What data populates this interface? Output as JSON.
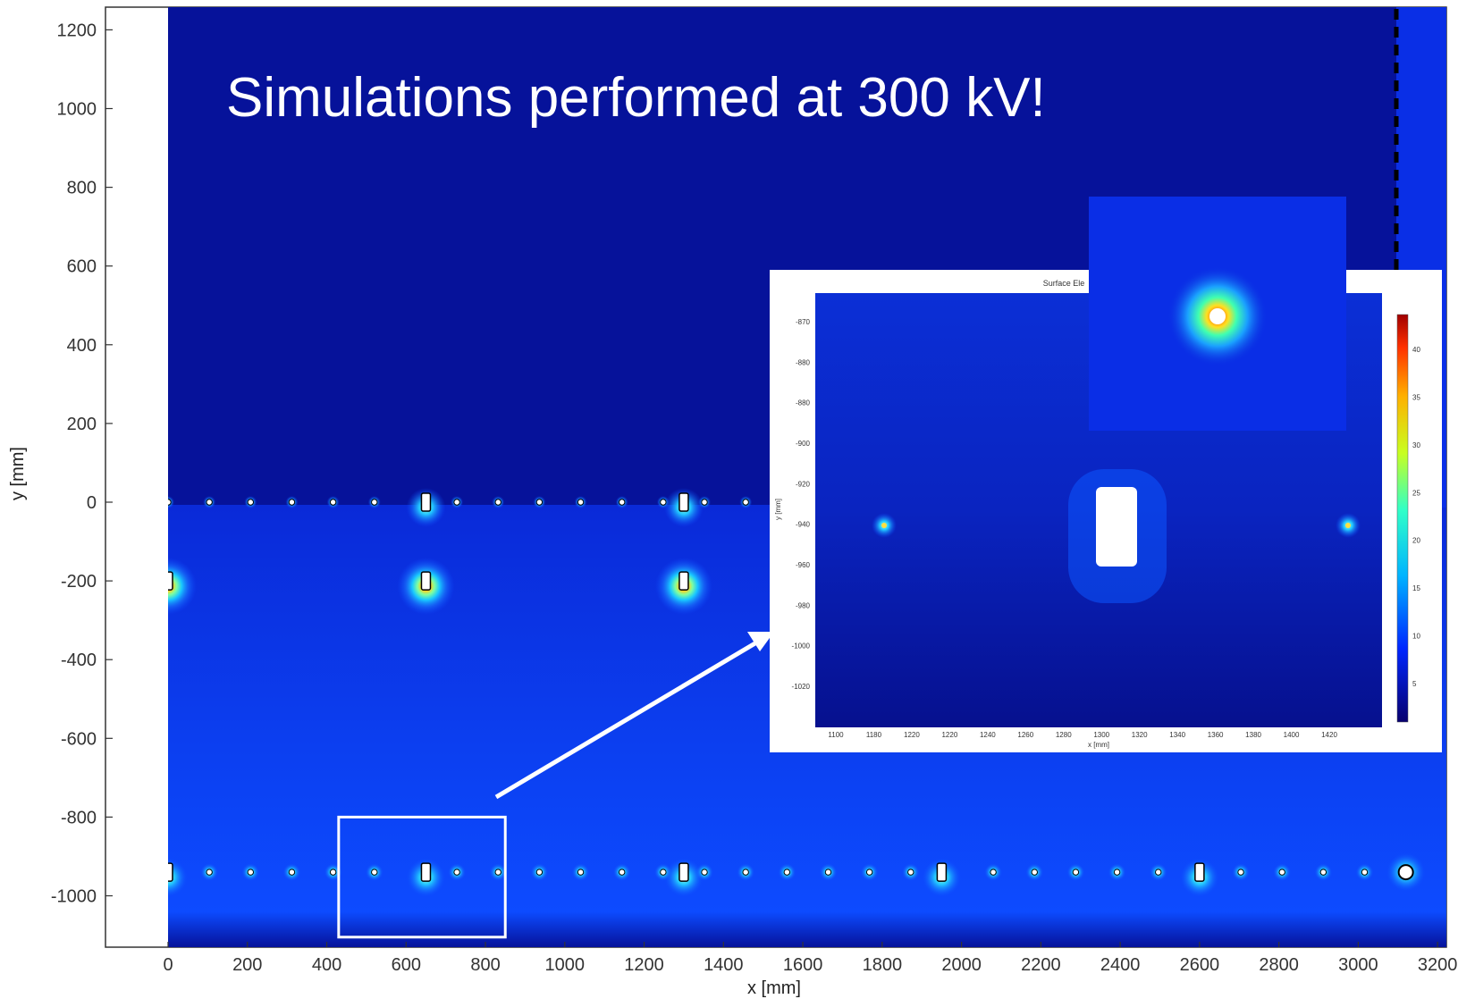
{
  "headline": "Simulations performed at 300 kV!",
  "chart_data": {
    "type": "heatmap",
    "xlabel": "x [mm]",
    "ylabel": "y [mm]",
    "xlim": [
      -160,
      3240
    ],
    "ylim": [
      -1120,
      1260
    ],
    "x_ticks": [
      0,
      200,
      400,
      600,
      800,
      1000,
      1200,
      1400,
      1600,
      1800,
      2000,
      2200,
      2400,
      2600,
      2800,
      3000,
      3200
    ],
    "x_tick_labels": [
      "0",
      "200",
      "400",
      "600",
      "800",
      "1000",
      "1200",
      "1400",
      "1600",
      "1800",
      "2000",
      "2200",
      "2400",
      "2600",
      "2800",
      "3000",
      "3200"
    ],
    "y_ticks": [
      1200,
      1000,
      800,
      600,
      400,
      200,
      0,
      -200,
      -400,
      -600,
      -800,
      -1000
    ],
    "y_tick_labels": [
      "1200",
      "1000",
      "800",
      "600",
      "400",
      "200",
      "0",
      "-200",
      "-400",
      "-600",
      "-800",
      "-1000"
    ],
    "grid": false,
    "colors": {
      "background": "#06129a",
      "field_bright": "#0d4bff",
      "field_glow": "#1a8cff",
      "hot": "#ffd020",
      "hottest": "#e02000",
      "electrode": "#ffffff"
    },
    "electrode_rows": [
      {
        "y": 0,
        "x_start": 0,
        "x_end": 1520,
        "pitch": 104,
        "large_at": [
          650,
          1300
        ]
      },
      {
        "y": -200,
        "x_start": 0,
        "x_end": 1300,
        "pitch": 650,
        "large_at": [
          0,
          650,
          1300
        ]
      },
      {
        "y": -940,
        "x_start": 0,
        "x_end": 3120,
        "pitch": 104,
        "large_at": [
          0,
          650,
          1300,
          1950,
          2600
        ],
        "ring_at": [
          3120
        ]
      }
    ],
    "zoom_box": {
      "x": [
        430,
        850
      ],
      "y": [
        -1105,
        -800
      ]
    },
    "inset": {
      "title": "Surface Ele",
      "xlabel": "x [mm]",
      "ylabel": "y [mm]",
      "x_tick_labels": [
        "1100",
        "1180",
        "1220",
        "1220",
        "1240",
        "1260",
        "1280",
        "1300",
        "1320",
        "1340",
        "1360",
        "1380",
        "1400",
        "1420"
      ],
      "y_tick_labels": [
        "-870",
        "-880",
        "-880",
        "-900",
        "-920",
        "-940",
        "-960",
        "-980",
        "-1000",
        "-1020"
      ],
      "colorbar_labels": [
        "40",
        "35",
        "30",
        "25",
        "20",
        "15",
        "10",
        "5"
      ],
      "colorbar_range": [
        0,
        45
      ]
    }
  }
}
